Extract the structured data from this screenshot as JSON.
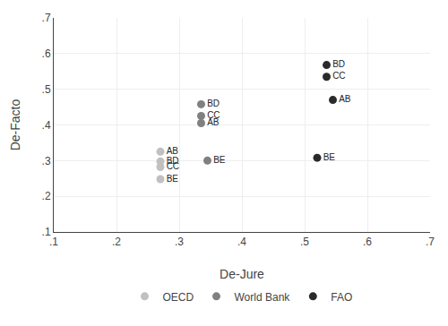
{
  "chart_data": {
    "type": "scatter",
    "xlabel": "De-Jure",
    "ylabel": "De-Facto",
    "xlim": [
      0.1,
      0.7
    ],
    "ylim": [
      0.1,
      0.7
    ],
    "xticks": [
      {
        "value": 0.1,
        "label": ".1"
      },
      {
        "value": 0.2,
        "label": ".2"
      },
      {
        "value": 0.3,
        "label": ".3"
      },
      {
        "value": 0.4,
        "label": ".4"
      },
      {
        "value": 0.5,
        "label": ".5"
      },
      {
        "value": 0.6,
        "label": ".6"
      },
      {
        "value": 0.7,
        "label": ".7"
      }
    ],
    "yticks": [
      {
        "value": 0.1,
        "label": ".1"
      },
      {
        "value": 0.2,
        "label": ".2"
      },
      {
        "value": 0.3,
        "label": ".3"
      },
      {
        "value": 0.4,
        "label": ".4"
      },
      {
        "value": 0.5,
        "label": ".5"
      },
      {
        "value": 0.6,
        "label": ".6"
      },
      {
        "value": 0.7,
        "label": ".7"
      }
    ],
    "grid": true,
    "legend": "bottom",
    "marker": "circle",
    "series": [
      {
        "name": "OECD",
        "color": "#c0c0c0",
        "x": [
          0.27,
          0.27,
          0.27,
          0.27
        ],
        "values": [
          0.325,
          0.298,
          0.282,
          0.248
        ],
        "labels": [
          "AB",
          "BD",
          "CC",
          "BE"
        ]
      },
      {
        "name": "World Bank",
        "color": "#808080",
        "x": [
          0.335,
          0.335,
          0.335,
          0.345
        ],
        "values": [
          0.458,
          0.425,
          0.405,
          0.3
        ],
        "labels": [
          "BD",
          "CC",
          "AB",
          "BE"
        ]
      },
      {
        "name": "FAO",
        "color": "#2a2a2a",
        "x": [
          0.535,
          0.535,
          0.545,
          0.52
        ],
        "values": [
          0.568,
          0.535,
          0.47,
          0.308
        ],
        "labels": [
          "BD",
          "CC",
          "AB",
          "BE"
        ]
      }
    ]
  }
}
